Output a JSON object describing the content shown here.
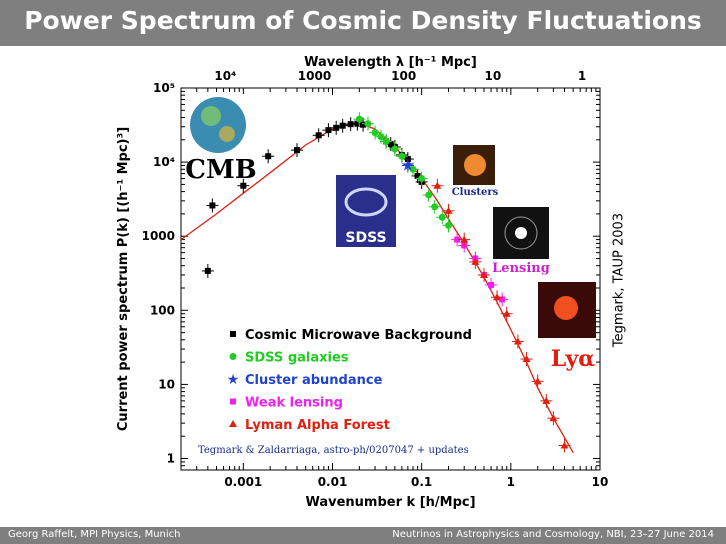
{
  "slide": {
    "title": "Power Spectrum of Cosmic Density Fluctuations",
    "credit": "Tegmark, TAUP 2003",
    "footer_left": "Georg Raffelt, MPI Physics, Munich",
    "footer_right": "Neutrinos in Astrophysics and Cosmology, NBI, 23–27 June 2014"
  },
  "chart_data": {
    "type": "scatter",
    "xlabel": "Wavenumber k [h/Mpc]",
    "ylabel": "Current power spectrum P(k) [(h⁻¹ Mpc)³]",
    "top_axis_label": "Wavelength λ [h⁻¹ Mpc]",
    "x_scale": "log",
    "y_scale": "log",
    "xlim": [
      0.0002,
      10
    ],
    "ylim": [
      0.7,
      100000
    ],
    "x_ticks": [
      {
        "value": 0.001,
        "label": "0.001"
      },
      {
        "value": 0.01,
        "label": "0.01"
      },
      {
        "value": 0.1,
        "label": "0.1"
      },
      {
        "value": 1,
        "label": "1"
      },
      {
        "value": 10,
        "label": "10"
      }
    ],
    "y_ticks": [
      {
        "value": 1,
        "label": "1"
      },
      {
        "value": 10,
        "label": "10"
      },
      {
        "value": 100,
        "label": "100"
      },
      {
        "value": 1000,
        "label": "1000"
      },
      {
        "value": 10000,
        "label": "10⁴"
      },
      {
        "value": 100000,
        "label": "10⁵"
      }
    ],
    "top_ticks": [
      {
        "value": 10000,
        "label": "10⁴"
      },
      {
        "value": 1000,
        "label": "1000"
      },
      {
        "value": 100,
        "label": "100"
      },
      {
        "value": 10,
        "label": "10"
      },
      {
        "value": 1,
        "label": "1"
      }
    ],
    "grid": false,
    "legend_position": "bottom-center",
    "image_labels": [
      "CMB",
      "SDSS",
      "Clusters",
      "Lensing",
      "Lyα"
    ],
    "citation": "Tegmark & Zaldarriaga, astro-ph/0207047 + updates",
    "model_curve": {
      "name": "",
      "color": "#e02010",
      "x": [
        0.0002,
        0.0005,
        0.001,
        0.002,
        0.005,
        0.01,
        0.015,
        0.02,
        0.03,
        0.05,
        0.07,
        0.1,
        0.15,
        0.2,
        0.3,
        0.5,
        0.7,
        1,
        1.5,
        2,
        3,
        5
      ],
      "y": [
        900,
        2000,
        3800,
        7200,
        17000,
        28000,
        33000,
        33500,
        28000,
        16000,
        10500,
        6000,
        3000,
        1700,
        800,
        280,
        130,
        55,
        20,
        9,
        3.5,
        1.2
      ]
    },
    "series": [
      {
        "name": "Cosmic Microwave Background",
        "color": "#000000",
        "marker": "square",
        "points": [
          {
            "x": 0.0004,
            "y": 340
          },
          {
            "x": 0.00045,
            "y": 2600
          },
          {
            "x": 0.001,
            "y": 4800
          },
          {
            "x": 0.0019,
            "y": 12000
          },
          {
            "x": 0.004,
            "y": 14500
          },
          {
            "x": 0.007,
            "y": 23000
          },
          {
            "x": 0.009,
            "y": 27000
          },
          {
            "x": 0.011,
            "y": 29000
          },
          {
            "x": 0.013,
            "y": 31000
          },
          {
            "x": 0.016,
            "y": 32500
          },
          {
            "x": 0.019,
            "y": 33000
          },
          {
            "x": 0.022,
            "y": 32000
          },
          {
            "x": 0.04,
            "y": 19000
          },
          {
            "x": 0.045,
            "y": 17500
          },
          {
            "x": 0.05,
            "y": 16000
          },
          {
            "x": 0.06,
            "y": 12500
          },
          {
            "x": 0.07,
            "y": 11000
          },
          {
            "x": 0.09,
            "y": 6500
          },
          {
            "x": 0.1,
            "y": 5400
          }
        ]
      },
      {
        "name": "SDSS galaxies",
        "color": "#22cc22",
        "marker": "circle",
        "points": [
          {
            "x": 0.02,
            "y": 38000
          },
          {
            "x": 0.025,
            "y": 33000
          },
          {
            "x": 0.03,
            "y": 25000
          },
          {
            "x": 0.035,
            "y": 22000
          },
          {
            "x": 0.04,
            "y": 19000
          },
          {
            "x": 0.05,
            "y": 15000
          },
          {
            "x": 0.06,
            "y": 12000
          },
          {
            "x": 0.08,
            "y": 8000
          },
          {
            "x": 0.1,
            "y": 6000
          },
          {
            "x": 0.12,
            "y": 3600
          },
          {
            "x": 0.14,
            "y": 2500
          },
          {
            "x": 0.17,
            "y": 1800
          },
          {
            "x": 0.2,
            "y": 1400
          }
        ]
      },
      {
        "name": "Cluster abundance",
        "color": "#2244cc",
        "marker": "star",
        "points": [
          {
            "x": 0.07,
            "y": 9000
          }
        ]
      },
      {
        "name": "Weak lensing",
        "color": "#ee22ee",
        "marker": "square",
        "points": [
          {
            "x": 0.25,
            "y": 900
          },
          {
            "x": 0.3,
            "y": 750
          },
          {
            "x": 0.4,
            "y": 500
          },
          {
            "x": 0.5,
            "y": 300
          },
          {
            "x": 0.6,
            "y": 220
          },
          {
            "x": 0.8,
            "y": 140
          }
        ]
      },
      {
        "name": "Lyman Alpha Forest",
        "color": "#e02010",
        "marker": "triangle",
        "points": [
          {
            "x": 0.15,
            "y": 4800
          },
          {
            "x": 0.2,
            "y": 2200
          },
          {
            "x": 0.3,
            "y": 900
          },
          {
            "x": 0.4,
            "y": 450
          },
          {
            "x": 0.5,
            "y": 300
          },
          {
            "x": 0.7,
            "y": 150
          },
          {
            "x": 0.9,
            "y": 90
          },
          {
            "x": 1.2,
            "y": 38
          },
          {
            "x": 1.5,
            "y": 22
          },
          {
            "x": 2,
            "y": 11
          },
          {
            "x": 2.5,
            "y": 6
          },
          {
            "x": 3,
            "y": 3.5
          },
          {
            "x": 4,
            "y": 1.5
          }
        ]
      }
    ]
  }
}
